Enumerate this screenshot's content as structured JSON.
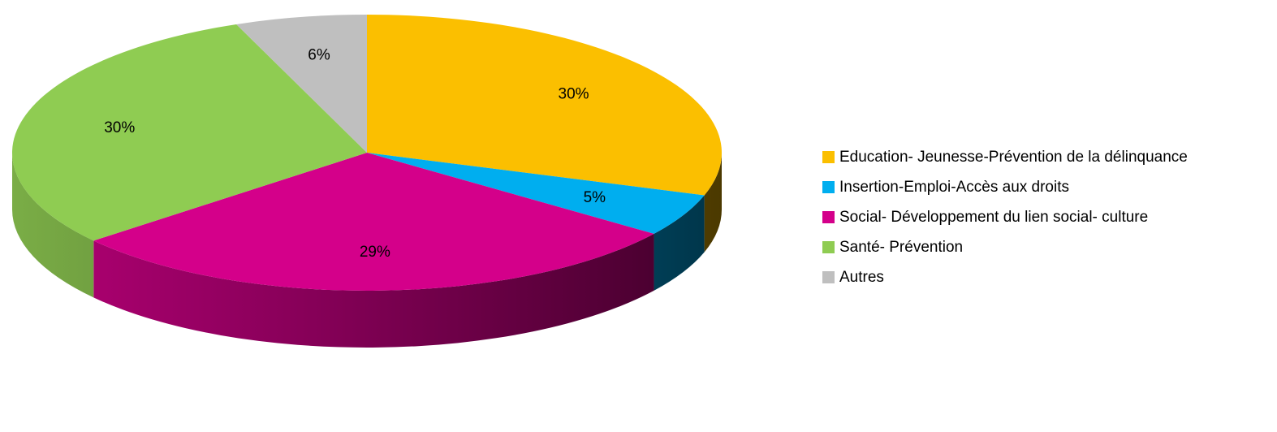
{
  "chart_data": {
    "type": "pie",
    "style": "3d-exploded-none",
    "start_angle_deg": 0,
    "direction": "clockwise",
    "legend_position": "right",
    "slices": [
      {
        "name": "Education- Jeunesse-Prévention de la délinquance",
        "value": 30,
        "label": "30%",
        "color": "#FBBF00"
      },
      {
        "name": "Insertion-Emploi-Accès aux droits",
        "value": 5,
        "label": "5%",
        "color": "#00AEEF"
      },
      {
        "name": "Social- Développement du lien social- culture",
        "value": 29,
        "label": "29%",
        "color": "#D4008A"
      },
      {
        "name": "Santé- Prévention",
        "value": 30,
        "label": "30%",
        "color": "#8FCC52"
      },
      {
        "name": "Autres",
        "value": 6,
        "label": "6%",
        "color": "#BFBFBF"
      }
    ]
  }
}
